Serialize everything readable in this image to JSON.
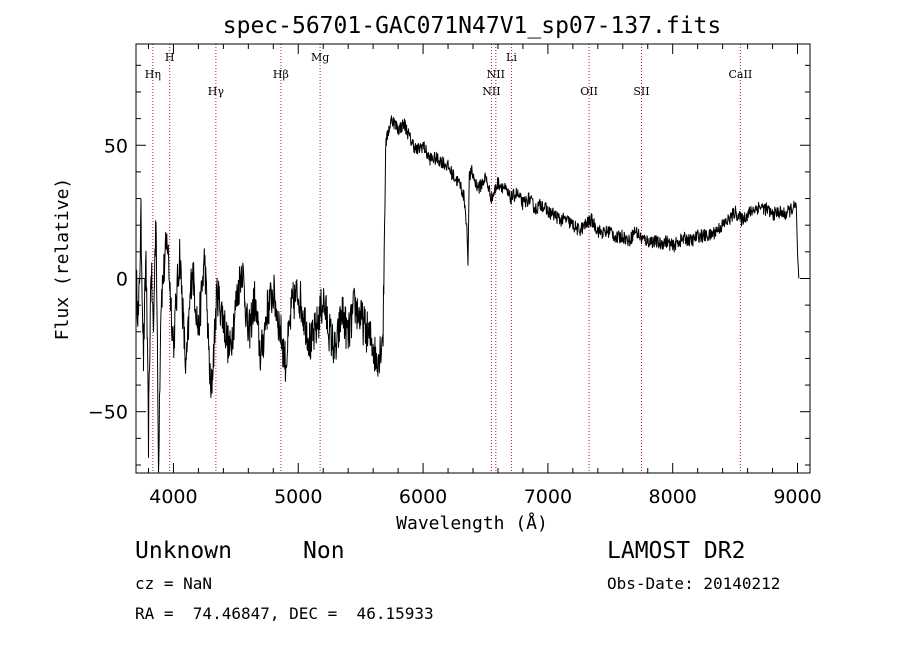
{
  "chart_data": {
    "type": "line",
    "title": "spec-56701-GAC071N47V1_sp07-137.fits",
    "xlabel": "Wavelength (Å)",
    "ylabel": "Flux (relative)",
    "xlim": [
      3700,
      9100
    ],
    "ylim": [
      -73,
      88
    ],
    "x_ticks": [
      4000,
      5000,
      6000,
      7000,
      8000,
      9000
    ],
    "x_tick_labels": [
      "4000",
      "5000",
      "6000",
      "7000",
      "8000",
      "9000"
    ],
    "y_ticks": [
      -50,
      0,
      50
    ],
    "y_tick_labels": [
      "−50",
      "0",
      "50"
    ],
    "grid": false,
    "legend": "none",
    "series": [
      {
        "color": "#000000",
        "x": [
          3700,
          3720,
          3740,
          3760,
          3780,
          3800,
          3820,
          3840,
          3860,
          3880,
          3900,
          3950,
          4000,
          4050,
          4100,
          4150,
          4200,
          4250,
          4300,
          4350,
          4400,
          4450,
          4500,
          4550,
          4600,
          4650,
          4700,
          4750,
          4800,
          4850,
          4900,
          4950,
          5000,
          5050,
          5100,
          5150,
          5200,
          5250,
          5300,
          5350,
          5400,
          5450,
          5500,
          5550,
          5600,
          5620,
          5650,
          5680,
          5700,
          5720,
          5750,
          5800,
          5850,
          5900,
          5950,
          6000,
          6050,
          6100,
          6150,
          6200,
          6250,
          6300,
          6330,
          6350,
          6360,
          6370,
          6390,
          6420,
          6450,
          6500,
          6550,
          6600,
          6650,
          6700,
          6750,
          6800,
          6850,
          6900,
          6950,
          7000,
          7050,
          7100,
          7150,
          7200,
          7250,
          7300,
          7350,
          7400,
          7450,
          7500,
          7550,
          7600,
          7650,
          7700,
          7750,
          7800,
          7850,
          7900,
          7950,
          8000,
          8050,
          8100,
          8150,
          8200,
          8250,
          8300,
          8350,
          8400,
          8450,
          8500,
          8550,
          8600,
          8650,
          8700,
          8750,
          8800,
          8850,
          8900,
          8950,
          8990,
          9000,
          9010
        ],
        "y": [
          0,
          -15,
          22,
          -30,
          10,
          -60,
          5,
          -20,
          28,
          -72,
          -8,
          15,
          -25,
          10,
          -35,
          5,
          -20,
          8,
          -45,
          -5,
          -15,
          -28,
          -10,
          5,
          -22,
          -8,
          -30,
          -12,
          -5,
          -18,
          -32,
          -10,
          -5,
          -15,
          -25,
          -18,
          -8,
          -20,
          -28,
          -12,
          -22,
          -10,
          -15,
          -20,
          -25,
          -30,
          -28,
          -20,
          50,
          55,
          60,
          56,
          58,
          52,
          48,
          50,
          45,
          45,
          44,
          42,
          38,
          35,
          30,
          20,
          5,
          38,
          40,
          36,
          34,
          38,
          30,
          36,
          34,
          30,
          32,
          28,
          30,
          26,
          28,
          25,
          24,
          22,
          22,
          20,
          18,
          20,
          22,
          18,
          17,
          18,
          15,
          16,
          14,
          18,
          15,
          14,
          14,
          13,
          14,
          12,
          14,
          15,
          14,
          16,
          16,
          16,
          18,
          20,
          22,
          25,
          22,
          24,
          26,
          27,
          26,
          24,
          25,
          24,
          26,
          27,
          10,
          0
        ]
      }
    ],
    "line_markers": [
      {
        "label": "Hη",
        "wavelength": 3835,
        "row": "lower"
      },
      {
        "label": "H",
        "wavelength": 3970,
        "row": "upper"
      },
      {
        "label": "Hγ",
        "wavelength": 4340,
        "row": "lowest"
      },
      {
        "label": "Hβ",
        "wavelength": 4861,
        "row": "lower"
      },
      {
        "label": "Mg",
        "wavelength": 5175,
        "row": "upper"
      },
      {
        "label": "NII",
        "wavelength": 6548,
        "row": "lowest"
      },
      {
        "label": "NII",
        "wavelength": 6583,
        "row": "lower"
      },
      {
        "label": "Li",
        "wavelength": 6708,
        "row": "upper"
      },
      {
        "label": "OII",
        "wavelength": 7330,
        "row": "lowest"
      },
      {
        "label": "SII",
        "wavelength": 7750,
        "row": "lowest"
      },
      {
        "label": "CaII",
        "wavelength": 8542,
        "row": "lower"
      }
    ]
  },
  "info": {
    "class_label": "Unknown",
    "subclass_label": "Non",
    "survey": "LAMOST DR2",
    "cz": "cz = NaN",
    "obs_date": "Obs-Date: 20140212",
    "coords": "RA =  74.46847, DEC =  46.15933"
  },
  "colors": {
    "marker_line": "#b22222",
    "axis": "#000000",
    "spectrum": "#000000"
  }
}
